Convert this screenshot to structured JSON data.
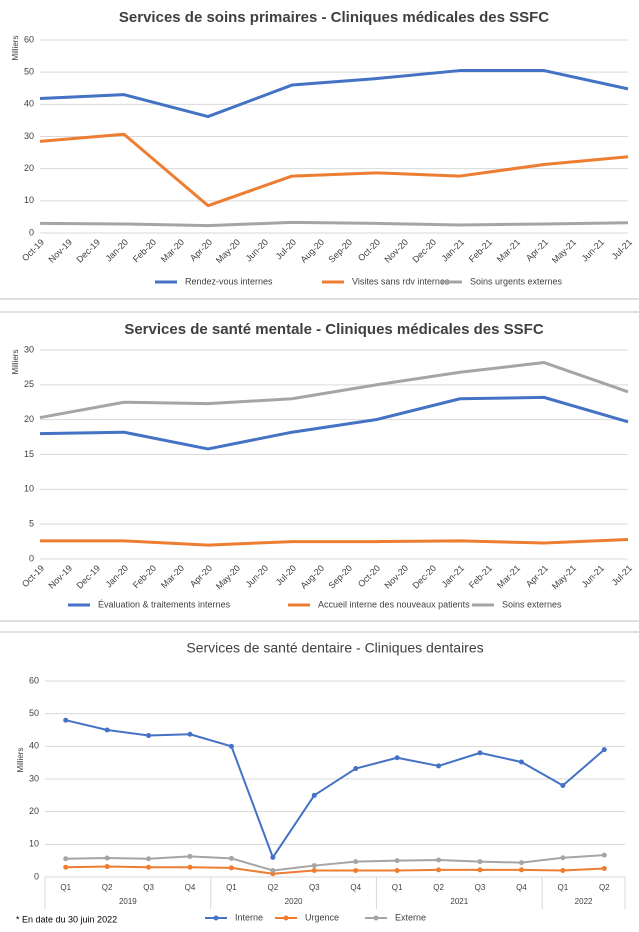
{
  "chart_data": [
    {
      "type": "line",
      "title": "Services de soins primaires - Cliniques médicales des SSFC",
      "y_label": "Milliers",
      "categories": [
        "Oct-19",
        "Nov-19",
        "Dec-19",
        "Jan-20",
        "Feb-20",
        "Mar-20",
        "Apr-20",
        "May-20",
        "Jun-20",
        "Jul-20",
        "Aug-20",
        "Sep-20",
        "Oct-20",
        "Nov-20",
        "Dec-20",
        "Jan-21",
        "Feb-21",
        "Mar-21",
        "Apr-21",
        "May-21",
        "Jun-21",
        "Jul-21"
      ],
      "ylim": [
        0,
        60
      ],
      "yticks": [
        0,
        10,
        20,
        30,
        40,
        50,
        60
      ],
      "grid": true,
      "markers": false,
      "series": [
        {
          "name": "Rendez-vous internes",
          "color": "#4472c4",
          "x": [
            "Oct-19",
            "Jan-20",
            "Apr-20",
            "Jul-20",
            "Oct-20",
            "Jan-21",
            "Apr-21",
            "Jul-21"
          ],
          "values": [
            41.8,
            43,
            36.2,
            46,
            48,
            50.5,
            50.5,
            44.8
          ]
        },
        {
          "name": "Visites sans rdv internes",
          "color": "#ed7d31",
          "x": [
            "Oct-19",
            "Jan-20",
            "Apr-20",
            "Jul-20",
            "Oct-20",
            "Jan-21",
            "Apr-21",
            "Jul-21"
          ],
          "values": [
            28.5,
            30.7,
            8.5,
            17.7,
            18.7,
            17.7,
            21.3,
            23.7
          ]
        },
        {
          "name": "Soins urgents externes",
          "color": "#a5a5a5",
          "x": [
            "Oct-19",
            "Jan-20",
            "Apr-20",
            "Jul-20",
            "Oct-20",
            "Jan-21",
            "Apr-21",
            "Jul-21"
          ],
          "values": [
            3,
            2.8,
            2.3,
            3.3,
            3,
            2.5,
            2.8,
            3.2
          ]
        }
      ]
    },
    {
      "type": "line",
      "title": "Services de santé mentale - Cliniques médicales des SSFC",
      "y_label": "Milliers",
      "categories": [
        "Oct-19",
        "Nov-19",
        "Dec-19",
        "Jan-20",
        "Feb-20",
        "Mar-20",
        "Apr-20",
        "May-20",
        "Jun-20",
        "Jul-20",
        "Aug-20",
        "Sep-20",
        "Oct-20",
        "Nov-20",
        "Dec-20",
        "Jan-21",
        "Feb-21",
        "Mar-21",
        "Apr-21",
        "May-21",
        "Jun-21",
        "Jul-21"
      ],
      "ylim": [
        0,
        30
      ],
      "yticks": [
        0,
        5,
        10,
        15,
        20,
        25,
        30
      ],
      "grid": true,
      "markers": false,
      "series": [
        {
          "name": "Évaluation & traitements internes",
          "color": "#4472c4",
          "x": [
            "Oct-19",
            "Jan-20",
            "Apr-20",
            "Jul-20",
            "Oct-20",
            "Jan-21",
            "Apr-21",
            "Jul-21"
          ],
          "values": [
            18,
            18.2,
            15.8,
            18.2,
            20,
            23,
            23.2,
            19.7
          ]
        },
        {
          "name": "Accueil interne des nouveaux patients",
          "color": "#ed7d31",
          "x": [
            "Oct-19",
            "Jan-20",
            "Apr-20",
            "Jul-20",
            "Oct-20",
            "Jan-21",
            "Apr-21",
            "Jul-21"
          ],
          "values": [
            2.6,
            2.6,
            2.0,
            2.5,
            2.5,
            2.6,
            2.3,
            2.8
          ]
        },
        {
          "name": "Soins externes",
          "color": "#a5a5a5",
          "x": [
            "Oct-19",
            "Jan-20",
            "Apr-20",
            "Jul-20",
            "Oct-20",
            "Jan-21",
            "Apr-21",
            "Jul-21"
          ],
          "values": [
            20.3,
            22.5,
            22.3,
            23,
            25,
            26.8,
            28.2,
            24
          ]
        }
      ]
    },
    {
      "type": "line",
      "title": "Services de santé dentaire - Cliniques dentaires",
      "y_label": "Milliers",
      "groups": [
        {
          "name": "2019",
          "categories": [
            "Q1",
            "Q2",
            "Q3",
            "Q4"
          ]
        },
        {
          "name": "2020",
          "categories": [
            "Q1",
            "Q2",
            "Q3",
            "Q4"
          ]
        },
        {
          "name": "2021",
          "categories": [
            "Q1",
            "Q2",
            "Q3",
            "Q4"
          ]
        },
        {
          "name": "2022",
          "categories": [
            "Q1",
            "Q2"
          ]
        }
      ],
      "ylim": [
        0,
        60
      ],
      "yticks": [
        0,
        10,
        20,
        30,
        40,
        50,
        60
      ],
      "grid": true,
      "markers": true,
      "series": [
        {
          "name": "Interne",
          "color": "#4472c4",
          "values": [
            48,
            45,
            43.3,
            43.7,
            40,
            6,
            25,
            33.2,
            36.5,
            34,
            38,
            35.2,
            28,
            39
          ]
        },
        {
          "name": "Urgence",
          "color": "#ed7d31",
          "values": [
            3,
            3.2,
            3,
            3,
            2.8,
            1,
            2,
            2,
            2,
            2.2,
            2.2,
            2.2,
            2,
            2.6
          ]
        },
        {
          "name": "Externe",
          "color": "#a5a5a5",
          "values": [
            5.6,
            5.8,
            5.6,
            6.3,
            5.7,
            2,
            3.5,
            4.7,
            5,
            5.2,
            4.7,
            4.4,
            5.9,
            6.7
          ]
        }
      ]
    }
  ],
  "footnote": "*   En date du 30 juin 2022"
}
